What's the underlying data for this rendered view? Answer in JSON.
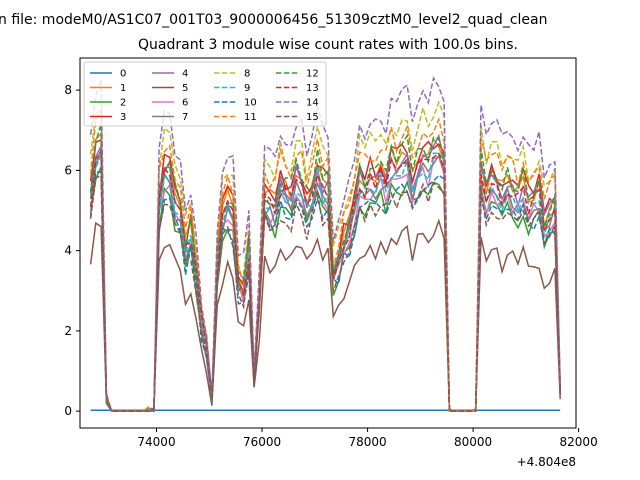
{
  "chart_data": {
    "type": "line",
    "suptitle": "n file: modeM0/AS1C07_001T03_9000006456_51309cztM0_level2_quad_clean",
    "title": "Quadrant 3 module wise count rates with 100.0s bins.",
    "xlabel": "",
    "ylabel": "",
    "x_offset_label": "+4.804e8",
    "x_offset": 480400000,
    "xlim": [
      72550,
      81950
    ],
    "ylim": [
      -0.42,
      8.8
    ],
    "x_ticks": [
      74000,
      76000,
      78000,
      80000,
      82000
    ],
    "x_tick_labels": [
      "74000",
      "76000",
      "78000",
      "80000",
      "82000"
    ],
    "y_ticks": [
      0,
      2,
      4,
      6,
      8
    ],
    "y_tick_labels": [
      "0",
      "2",
      "4",
      "6",
      "8"
    ],
    "legend_position": "top-left",
    "legend_columns": 4,
    "grid": false,
    "time_bins": {
      "start": 72750,
      "step": 100,
      "count": 90,
      "rule": "bins at start + step*i for i in 0..count-1, value near 0 during gaps"
    },
    "gaps": [
      [
        73050,
        73850
      ],
      [
        79550,
        80050
      ]
    ],
    "base_profile": {
      "x": [
        72750,
        72850,
        72950,
        73050,
        73950,
        74050,
        74150,
        74250,
        74350,
        74450,
        74550,
        74650,
        74750,
        74850,
        74950,
        75050,
        75150,
        75250,
        75350,
        75450,
        75550,
        75650,
        75750,
        75850,
        75950,
        76050,
        76150,
        76250,
        76350,
        76450,
        76550,
        76650,
        76750,
        76850,
        76950,
        77050,
        77150,
        77250,
        77350,
        77450,
        77550,
        77650,
        77750,
        77850,
        77950,
        78050,
        78150,
        78250,
        78350,
        78450,
        78550,
        78650,
        78750,
        78850,
        78950,
        79050,
        79150,
        79250,
        79350,
        79450,
        79550,
        80050,
        80150,
        80250,
        80350,
        80450,
        80550,
        80650,
        80750,
        80850,
        80950,
        81050,
        81150,
        81250,
        81350,
        81450,
        81550,
        81650
      ],
      "y": [
        5.3,
        6.4,
        6.6,
        0.3,
        0.0,
        5.2,
        5.9,
        6.0,
        5.2,
        4.8,
        4.0,
        4.4,
        3.5,
        2.2,
        1.6,
        0.3,
        3.6,
        4.8,
        5.2,
        4.9,
        3.2,
        3.0,
        4.0,
        0.8,
        2.8,
        5.3,
        5.1,
        5.0,
        5.6,
        5.4,
        5.3,
        5.8,
        5.6,
        5.1,
        5.4,
        6.0,
        5.5,
        5.5,
        3.4,
        3.8,
        4.2,
        4.5,
        5.0,
        5.7,
        5.5,
        5.8,
        5.7,
        5.9,
        5.6,
        6.1,
        6.0,
        6.2,
        6.3,
        5.6,
        6.0,
        6.3,
        6.1,
        6.4,
        6.5,
        6.2,
        0.0,
        0.0,
        6.0,
        5.4,
        5.8,
        5.6,
        5.3,
        5.6,
        5.4,
        5.2,
        5.6,
        5.1,
        5.2,
        5.4,
        4.6,
        4.9,
        5.1,
        0.5
      ]
    },
    "series": [
      {
        "name": "0",
        "color": "#1f77b4",
        "style": "solid",
        "scale": 0.0,
        "offset": 0.02
      },
      {
        "name": "1",
        "color": "#ff7f0e",
        "style": "solid",
        "scale": 1.04,
        "offset": 0.0
      },
      {
        "name": "2",
        "color": "#2ca02c",
        "style": "solid",
        "scale": 0.9,
        "offset": 0.0
      },
      {
        "name": "3",
        "color": "#d62728",
        "style": "solid",
        "scale": 1.06,
        "offset": 0.0
      },
      {
        "name": "4",
        "color": "#9467bd",
        "style": "solid",
        "scale": 1.02,
        "offset": 0.0
      },
      {
        "name": "5",
        "color": "#8c564b",
        "style": "solid",
        "scale": 0.7,
        "offset": 0.0
      },
      {
        "name": "6",
        "color": "#e377c2",
        "style": "solid",
        "scale": 0.95,
        "offset": 0.0
      },
      {
        "name": "7",
        "color": "#7f7f7f",
        "style": "solid",
        "scale": 0.96,
        "offset": 0.0
      },
      {
        "name": "8",
        "color": "#bcbd22",
        "style": "dashed",
        "scale": 1.17,
        "offset": 0.0
      },
      {
        "name": "9",
        "color": "#17becf",
        "style": "dashed",
        "scale": 0.98,
        "offset": 0.0
      },
      {
        "name": "10",
        "color": "#1f77b4",
        "style": "dashed",
        "scale": 0.9,
        "offset": 0.0
      },
      {
        "name": "11",
        "color": "#ff7f0e",
        "style": "dashed",
        "scale": 1.12,
        "offset": 0.0
      },
      {
        "name": "12",
        "color": "#2ca02c",
        "style": "dashed",
        "scale": 1.05,
        "offset": 0.0
      },
      {
        "name": "13",
        "color": "#d62728",
        "style": "dashed",
        "scale": 1.0,
        "offset": 0.0
      },
      {
        "name": "14",
        "color": "#9467bd",
        "style": "dashed",
        "scale": 1.26,
        "offset": 0.0
      },
      {
        "name": "15",
        "color": "#8c564b",
        "style": "dashed",
        "scale": 0.88,
        "offset": 0.0
      }
    ]
  }
}
